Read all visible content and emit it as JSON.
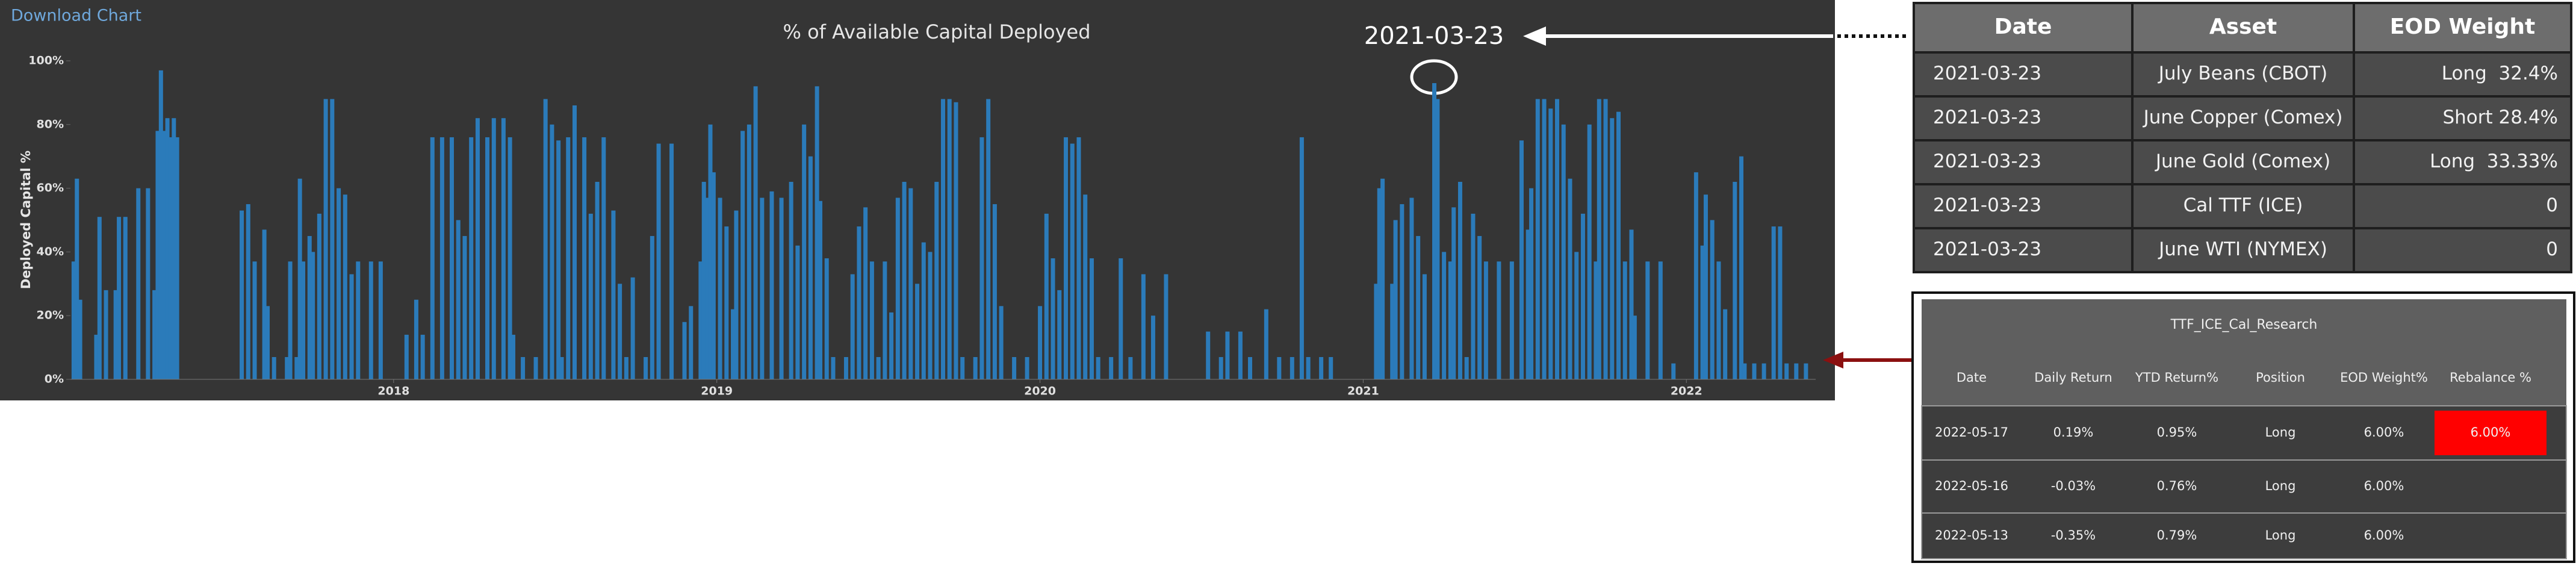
{
  "download_link": "Download Chart",
  "chart_data": {
    "type": "bar",
    "title": "% of Available Capital Deployed",
    "ylabel": "Deployed Capital %",
    "annotation": "2021-03-23",
    "color": "#2b7bba",
    "grid": false,
    "xlim": [
      2017.0,
      2022.4
    ],
    "xticks": [
      2018,
      2019,
      2020,
      2021,
      2022
    ],
    "ylim": [
      0,
      100
    ],
    "yticks": [
      {
        "value": 0,
        "label": "0%"
      },
      {
        "value": 20,
        "label": "20%"
      },
      {
        "value": 40,
        "label": "40%"
      },
      {
        "value": 60,
        "label": "60%"
      },
      {
        "value": 80,
        "label": "80%"
      },
      {
        "value": 100,
        "label": "100%"
      }
    ],
    "x": [
      2017.01,
      2017.02,
      2017.03,
      2017.08,
      2017.09,
      2017.11,
      2017.14,
      2017.15,
      2017.17,
      2017.21,
      2017.24,
      2017.26,
      2017.27,
      2017.28,
      2017.29,
      2017.3,
      2017.31,
      2017.32,
      2017.33,
      2017.53,
      2017.55,
      2017.57,
      2017.6,
      2017.61,
      2017.63,
      2017.67,
      2017.68,
      2017.7,
      2017.71,
      2017.72,
      2017.74,
      2017.75,
      2017.77,
      2017.79,
      2017.81,
      2017.83,
      2017.85,
      2017.87,
      2017.89,
      2017.93,
      2017.96,
      2018.04,
      2018.07,
      2018.09,
      2018.12,
      2018.15,
      2018.18,
      2018.2,
      2018.22,
      2018.24,
      2018.26,
      2018.29,
      2018.31,
      2018.34,
      2018.36,
      2018.37,
      2018.4,
      2018.44,
      2018.47,
      2018.49,
      2018.51,
      2018.52,
      2018.54,
      2018.56,
      2018.59,
      2018.61,
      2018.63,
      2018.65,
      2018.68,
      2018.7,
      2018.72,
      2018.74,
      2018.78,
      2018.8,
      2018.82,
      2018.86,
      2018.9,
      2018.92,
      2018.95,
      2018.96,
      2018.97,
      2018.98,
      2018.99,
      2019.01,
      2019.03,
      2019.05,
      2019.06,
      2019.08,
      2019.1,
      2019.12,
      2019.14,
      2019.17,
      2019.2,
      2019.23,
      2019.25,
      2019.27,
      2019.29,
      2019.31,
      2019.32,
      2019.34,
      2019.36,
      2019.4,
      2019.42,
      2019.44,
      2019.46,
      2019.48,
      2019.5,
      2019.52,
      2019.54,
      2019.56,
      2019.58,
      2019.6,
      2019.62,
      2019.64,
      2019.66,
      2019.68,
      2019.7,
      2019.72,
      2019.74,
      2019.76,
      2019.8,
      2019.82,
      2019.84,
      2019.86,
      2019.88,
      2019.92,
      2019.96,
      2020.0,
      2020.02,
      2020.04,
      2020.06,
      2020.08,
      2020.1,
      2020.12,
      2020.14,
      2020.16,
      2020.18,
      2020.22,
      2020.25,
      2020.28,
      2020.32,
      2020.35,
      2020.39,
      2020.52,
      2020.56,
      2020.58,
      2020.62,
      2020.65,
      2020.7,
      2020.74,
      2020.78,
      2020.81,
      2020.83,
      2020.87,
      2020.9,
      2021.04,
      2021.05,
      2021.06,
      2021.09,
      2021.1,
      2021.12,
      2021.15,
      2021.17,
      2021.19,
      2021.22,
      2021.23,
      2021.25,
      2021.27,
      2021.28,
      2021.3,
      2021.32,
      2021.34,
      2021.36,
      2021.38,
      2021.42,
      2021.46,
      2021.49,
      2021.51,
      2021.52,
      2021.54,
      2021.56,
      2021.58,
      2021.6,
      2021.62,
      2021.64,
      2021.66,
      2021.68,
      2021.7,
      2021.72,
      2021.73,
      2021.75,
      2021.77,
      2021.79,
      2021.81,
      2021.83,
      2021.84,
      2021.88,
      2021.92,
      2021.96,
      2022.03,
      2022.05,
      2022.06,
      2022.08,
      2022.1,
      2022.12,
      2022.15,
      2022.17,
      2022.18,
      2022.21,
      2022.24,
      2022.27,
      2022.29,
      2022.31,
      2022.34,
      2022.37
    ],
    "values": [
      37,
      63,
      25,
      14,
      51,
      28,
      28,
      51,
      51,
      60,
      60,
      28,
      78,
      97,
      78,
      82,
      76,
      82,
      76,
      53,
      55,
      37,
      47,
      23,
      7,
      7,
      37,
      7,
      63,
      37,
      45,
      40,
      52,
      88,
      88,
      60,
      58,
      33,
      37,
      37,
      37,
      14,
      25,
      14,
      76,
      76,
      76,
      50,
      45,
      76,
      82,
      76,
      82,
      82,
      76,
      14,
      7,
      7,
      88,
      80,
      75,
      7,
      76,
      86,
      76,
      52,
      62,
      76,
      53,
      30,
      7,
      32,
      7,
      45,
      74,
      74,
      18,
      23,
      37,
      62,
      57,
      80,
      65,
      57,
      48,
      22,
      53,
      78,
      80,
      92,
      57,
      59,
      57,
      62,
      42,
      80,
      70,
      92,
      56,
      38,
      7,
      7,
      33,
      48,
      54,
      37,
      7,
      37,
      21,
      57,
      62,
      60,
      30,
      43,
      40,
      62,
      88,
      88,
      87,
      7,
      7,
      76,
      88,
      55,
      23,
      7,
      7,
      23,
      52,
      38,
      28,
      76,
      74,
      76,
      58,
      38,
      7,
      7,
      38,
      7,
      33,
      20,
      33,
      15,
      7,
      15,
      15,
      7,
      22,
      7,
      7,
      76,
      7,
      7,
      7,
      30,
      60,
      63,
      30,
      50,
      55,
      57,
      45,
      33,
      93,
      88,
      40,
      37,
      54,
      62,
      7,
      52,
      45,
      37,
      37,
      37,
      75,
      47,
      60,
      88,
      88,
      85,
      88,
      80,
      63,
      40,
      52,
      80,
      37,
      88,
      88,
      82,
      84,
      37,
      47,
      20,
      37,
      37,
      5,
      65,
      42,
      58,
      50,
      37,
      22,
      62,
      70,
      5,
      5,
      5,
      48,
      48,
      5,
      5,
      5
    ]
  },
  "positions_table": {
    "columns": [
      "Date",
      "Asset",
      "EOD Weight"
    ],
    "rows": [
      [
        "2021-03-23",
        "July Beans (CBOT)",
        "Long  32.4%"
      ],
      [
        "2021-03-23",
        "June Copper (Comex)",
        "Short 28.4%"
      ],
      [
        "2021-03-23",
        "June Gold (Comex)",
        "Long  33.33%"
      ],
      [
        "2021-03-23",
        "Cal TTF (ICE)",
        "0"
      ],
      [
        "2021-03-23",
        "June WTI (NYMEX)",
        "0"
      ]
    ]
  },
  "research_table": {
    "title": "TTF_ICE_Cal_Research",
    "columns": [
      "Date",
      "Daily Return",
      "YTD Return%",
      "Position",
      "EOD Weight%",
      "Rebalance %"
    ],
    "rows": [
      [
        "2022-05-17",
        "0.19%",
        "0.95%",
        "Long",
        "6.00%",
        "6.00%"
      ],
      [
        "2022-05-16",
        "-0.03%",
        "0.76%",
        "Long",
        "6.00%"
      ],
      [
        "2022-05-13",
        "-0.35%",
        "0.79%",
        "Long",
        "6.00%"
      ]
    ]
  }
}
